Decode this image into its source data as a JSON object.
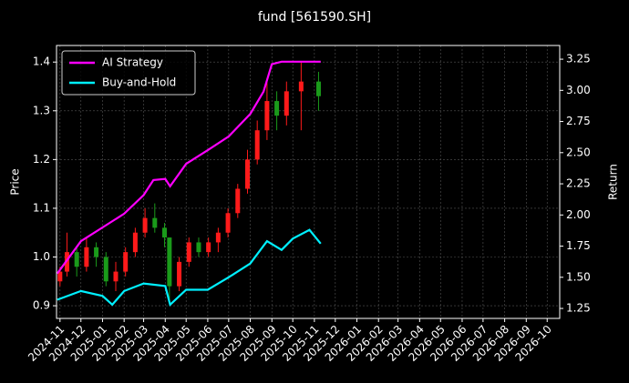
{
  "chart_data": {
    "type": "candlestick",
    "title": "fund [561590.SH]",
    "ylabel": "Price",
    "y2label": "Return",
    "xlim": [
      "2024-10-27",
      "2026-10-19"
    ],
    "xticks": [
      {
        "value": "2024-11-01",
        "label": "2024-11"
      },
      {
        "value": "2024-12-01",
        "label": "2024-12"
      },
      {
        "value": "2025-01-01",
        "label": "2025-01"
      },
      {
        "value": "2025-02-01",
        "label": "2025-02"
      },
      {
        "value": "2025-03-01",
        "label": "2025-03"
      },
      {
        "value": "2025-04-01",
        "label": "2025-04"
      },
      {
        "value": "2025-05-01",
        "label": "2025-05"
      },
      {
        "value": "2025-06-01",
        "label": "2025-06"
      },
      {
        "value": "2025-07-01",
        "label": "2025-07"
      },
      {
        "value": "2025-08-01",
        "label": "2025-08"
      },
      {
        "value": "2025-09-01",
        "label": "2025-09"
      },
      {
        "value": "2025-10-01",
        "label": "2025-10"
      },
      {
        "value": "2025-11-01",
        "label": "2025-11"
      },
      {
        "value": "2025-12-01",
        "label": "2025-12"
      },
      {
        "value": "2026-01-01",
        "label": "2026-01"
      },
      {
        "value": "2026-02-01",
        "label": "2026-02"
      },
      {
        "value": "2026-03-01",
        "label": "2026-03"
      },
      {
        "value": "2026-04-01",
        "label": "2026-04"
      },
      {
        "value": "2026-05-01",
        "label": "2026-05"
      },
      {
        "value": "2026-06-01",
        "label": "2026-06"
      },
      {
        "value": "2026-07-01",
        "label": "2026-07"
      },
      {
        "value": "2026-08-01",
        "label": "2026-08"
      },
      {
        "value": "2026-09-01",
        "label": "2026-09"
      },
      {
        "value": "2026-10-01",
        "label": "2026-10"
      }
    ],
    "ylim": [
      0.874,
      1.434
    ],
    "yticks": [
      0.9,
      {
        "value": 1.0,
        "label": "1.0"
      },
      1.1,
      1.2,
      1.3,
      1.4
    ],
    "y2lim": [
      1.17,
      3.36
    ],
    "y2ticks": [
      1.25,
      {
        "value": 1.5,
        "label": "1.50"
      },
      1.75,
      {
        "value": 2.0,
        "label": "2.00"
      },
      2.25,
      {
        "value": 2.5,
        "label": "2.50"
      },
      2.75,
      {
        "value": 3.0,
        "label": "3.00"
      },
      3.25
    ],
    "grid": true,
    "legend": "upper left",
    "up_color": "#ff1a1a",
    "down_color": "#1a9a1a",
    "candles": {
      "x": [
        "2024-11-01",
        "2024-11-11",
        "2024-11-25",
        "2024-12-09",
        "2024-12-23",
        "2025-01-06",
        "2025-01-20",
        "2025-02-03",
        "2025-02-17",
        "2025-03-03",
        "2025-03-17",
        "2025-03-31",
        "2025-04-07",
        "2025-04-21",
        "2025-05-05",
        "2025-05-19",
        "2025-06-02",
        "2025-06-16",
        "2025-06-30",
        "2025-07-14",
        "2025-07-28",
        "2025-08-11",
        "2025-08-25",
        "2025-09-08",
        "2025-09-22",
        "2025-10-13",
        "2025-11-07"
      ],
      "open": [
        0.95,
        0.97,
        1.01,
        0.98,
        1.02,
        1.0,
        0.95,
        0.97,
        1.01,
        1.05,
        1.08,
        1.06,
        1.04,
        0.94,
        0.99,
        1.03,
        1.01,
        1.03,
        1.05,
        1.09,
        1.14,
        1.2,
        1.26,
        1.32,
        1.29,
        1.34,
        1.36
      ],
      "high": [
        0.98,
        1.05,
        1.02,
        1.04,
        1.03,
        1.01,
        0.99,
        1.02,
        1.06,
        1.1,
        1.11,
        1.07,
        1.04,
        1.0,
        1.04,
        1.04,
        1.04,
        1.06,
        1.1,
        1.15,
        1.22,
        1.28,
        1.36,
        1.34,
        1.36,
        1.4,
        1.38
      ],
      "low": [
        0.94,
        0.96,
        0.96,
        0.97,
        0.98,
        0.94,
        0.93,
        0.96,
        1.0,
        1.04,
        1.05,
        1.02,
        0.91,
        0.93,
        0.98,
        1.0,
        1.0,
        1.01,
        1.04,
        1.08,
        1.13,
        1.19,
        1.24,
        1.26,
        1.27,
        1.26,
        1.3
      ],
      "close": [
        0.97,
        1.01,
        0.98,
        1.02,
        1.0,
        0.95,
        0.97,
        1.01,
        1.05,
        1.08,
        1.06,
        1.04,
        0.94,
        0.99,
        1.03,
        1.01,
        1.03,
        1.05,
        1.09,
        1.14,
        1.2,
        1.26,
        1.32,
        1.29,
        1.34,
        1.36,
        1.33
      ]
    },
    "series": [
      {
        "name": "AI Strategy",
        "color": "#ff00ff",
        "axis": "y2",
        "x": [
          "2024-10-28",
          "2024-12-01",
          "2025-01-01",
          "2025-02-01",
          "2025-03-01",
          "2025-03-15",
          "2025-04-01",
          "2025-04-08",
          "2025-05-01",
          "2025-06-01",
          "2025-07-01",
          "2025-08-01",
          "2025-08-20",
          "2025-09-01",
          "2025-09-15",
          "2025-10-01",
          "2025-11-10"
        ],
        "values": [
          1.53,
          1.79,
          1.9,
          2.01,
          2.16,
          2.28,
          2.29,
          2.23,
          2.41,
          2.52,
          2.63,
          2.81,
          2.99,
          3.21,
          3.23,
          3.23,
          3.23
        ]
      },
      {
        "name": "Buy-and-Hold",
        "color": "#00f0ff",
        "axis": "y2",
        "x": [
          "2024-10-28",
          "2024-12-01",
          "2025-01-01",
          "2025-01-15",
          "2025-02-01",
          "2025-03-01",
          "2025-04-01",
          "2025-04-08",
          "2025-05-01",
          "2025-06-01",
          "2025-07-01",
          "2025-08-01",
          "2025-08-25",
          "2025-09-15",
          "2025-10-01",
          "2025-10-25",
          "2025-11-10"
        ],
        "values": [
          1.32,
          1.39,
          1.35,
          1.28,
          1.39,
          1.45,
          1.43,
          1.28,
          1.4,
          1.4,
          1.5,
          1.61,
          1.79,
          1.72,
          1.81,
          1.88,
          1.77
        ]
      }
    ]
  }
}
